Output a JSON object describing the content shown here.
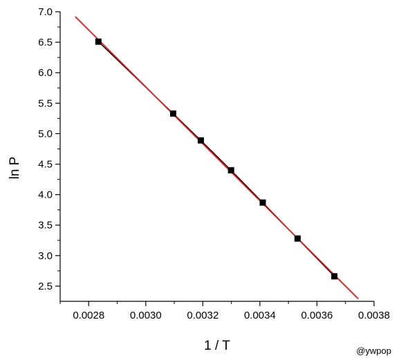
{
  "chart_data": {
    "type": "scatter",
    "xlabel": "1 / T",
    "ylabel": "ln P",
    "xlim": [
      0.0027,
      0.0038
    ],
    "ylim": [
      2.25,
      7.0
    ],
    "xticks_major": [
      0.0028,
      0.003,
      0.0032,
      0.0034,
      0.0036,
      0.0038
    ],
    "xtick_labels": [
      "0.0028",
      "0.0030",
      "0.0032",
      "0.0034",
      "0.0036",
      "0.0038"
    ],
    "xticks_minor": [
      0.0027,
      0.0029,
      0.0031,
      0.0033,
      0.0035,
      0.0037
    ],
    "yticks_major": [
      2.5,
      3.0,
      3.5,
      4.0,
      4.5,
      5.0,
      5.5,
      6.0,
      6.5,
      7.0
    ],
    "ytick_labels": [
      "2.5",
      "3.0",
      "3.5",
      "4.0",
      "4.5",
      "5.0",
      "5.5",
      "6.0",
      "6.5",
      "7.0"
    ],
    "yticks_minor": [
      2.75,
      3.25,
      3.75,
      4.25,
      4.75,
      5.25,
      5.75,
      6.25,
      6.75
    ],
    "grid": false,
    "legend": "none",
    "series": [
      {
        "kind": "points",
        "marker": "square",
        "color": "#000000",
        "x": [
          0.002834,
          0.003096,
          0.003193,
          0.003299,
          0.00341,
          0.003532,
          0.003661
        ],
        "y": [
          6.51,
          5.33,
          4.89,
          4.4,
          3.87,
          3.28,
          2.66
        ]
      },
      {
        "kind": "connecting-line",
        "color": "#000000",
        "x": [
          0.002834,
          0.003096,
          0.003193,
          0.003299,
          0.00341,
          0.003532,
          0.003661
        ],
        "y": [
          6.51,
          5.33,
          4.89,
          4.4,
          3.87,
          3.28,
          2.66
        ]
      },
      {
        "kind": "fit-line",
        "color": "#e8161b",
        "x": [
          0.002753,
          0.003745
        ],
        "y": [
          6.92,
          2.29
        ]
      }
    ]
  },
  "watermark": "@ywpop"
}
